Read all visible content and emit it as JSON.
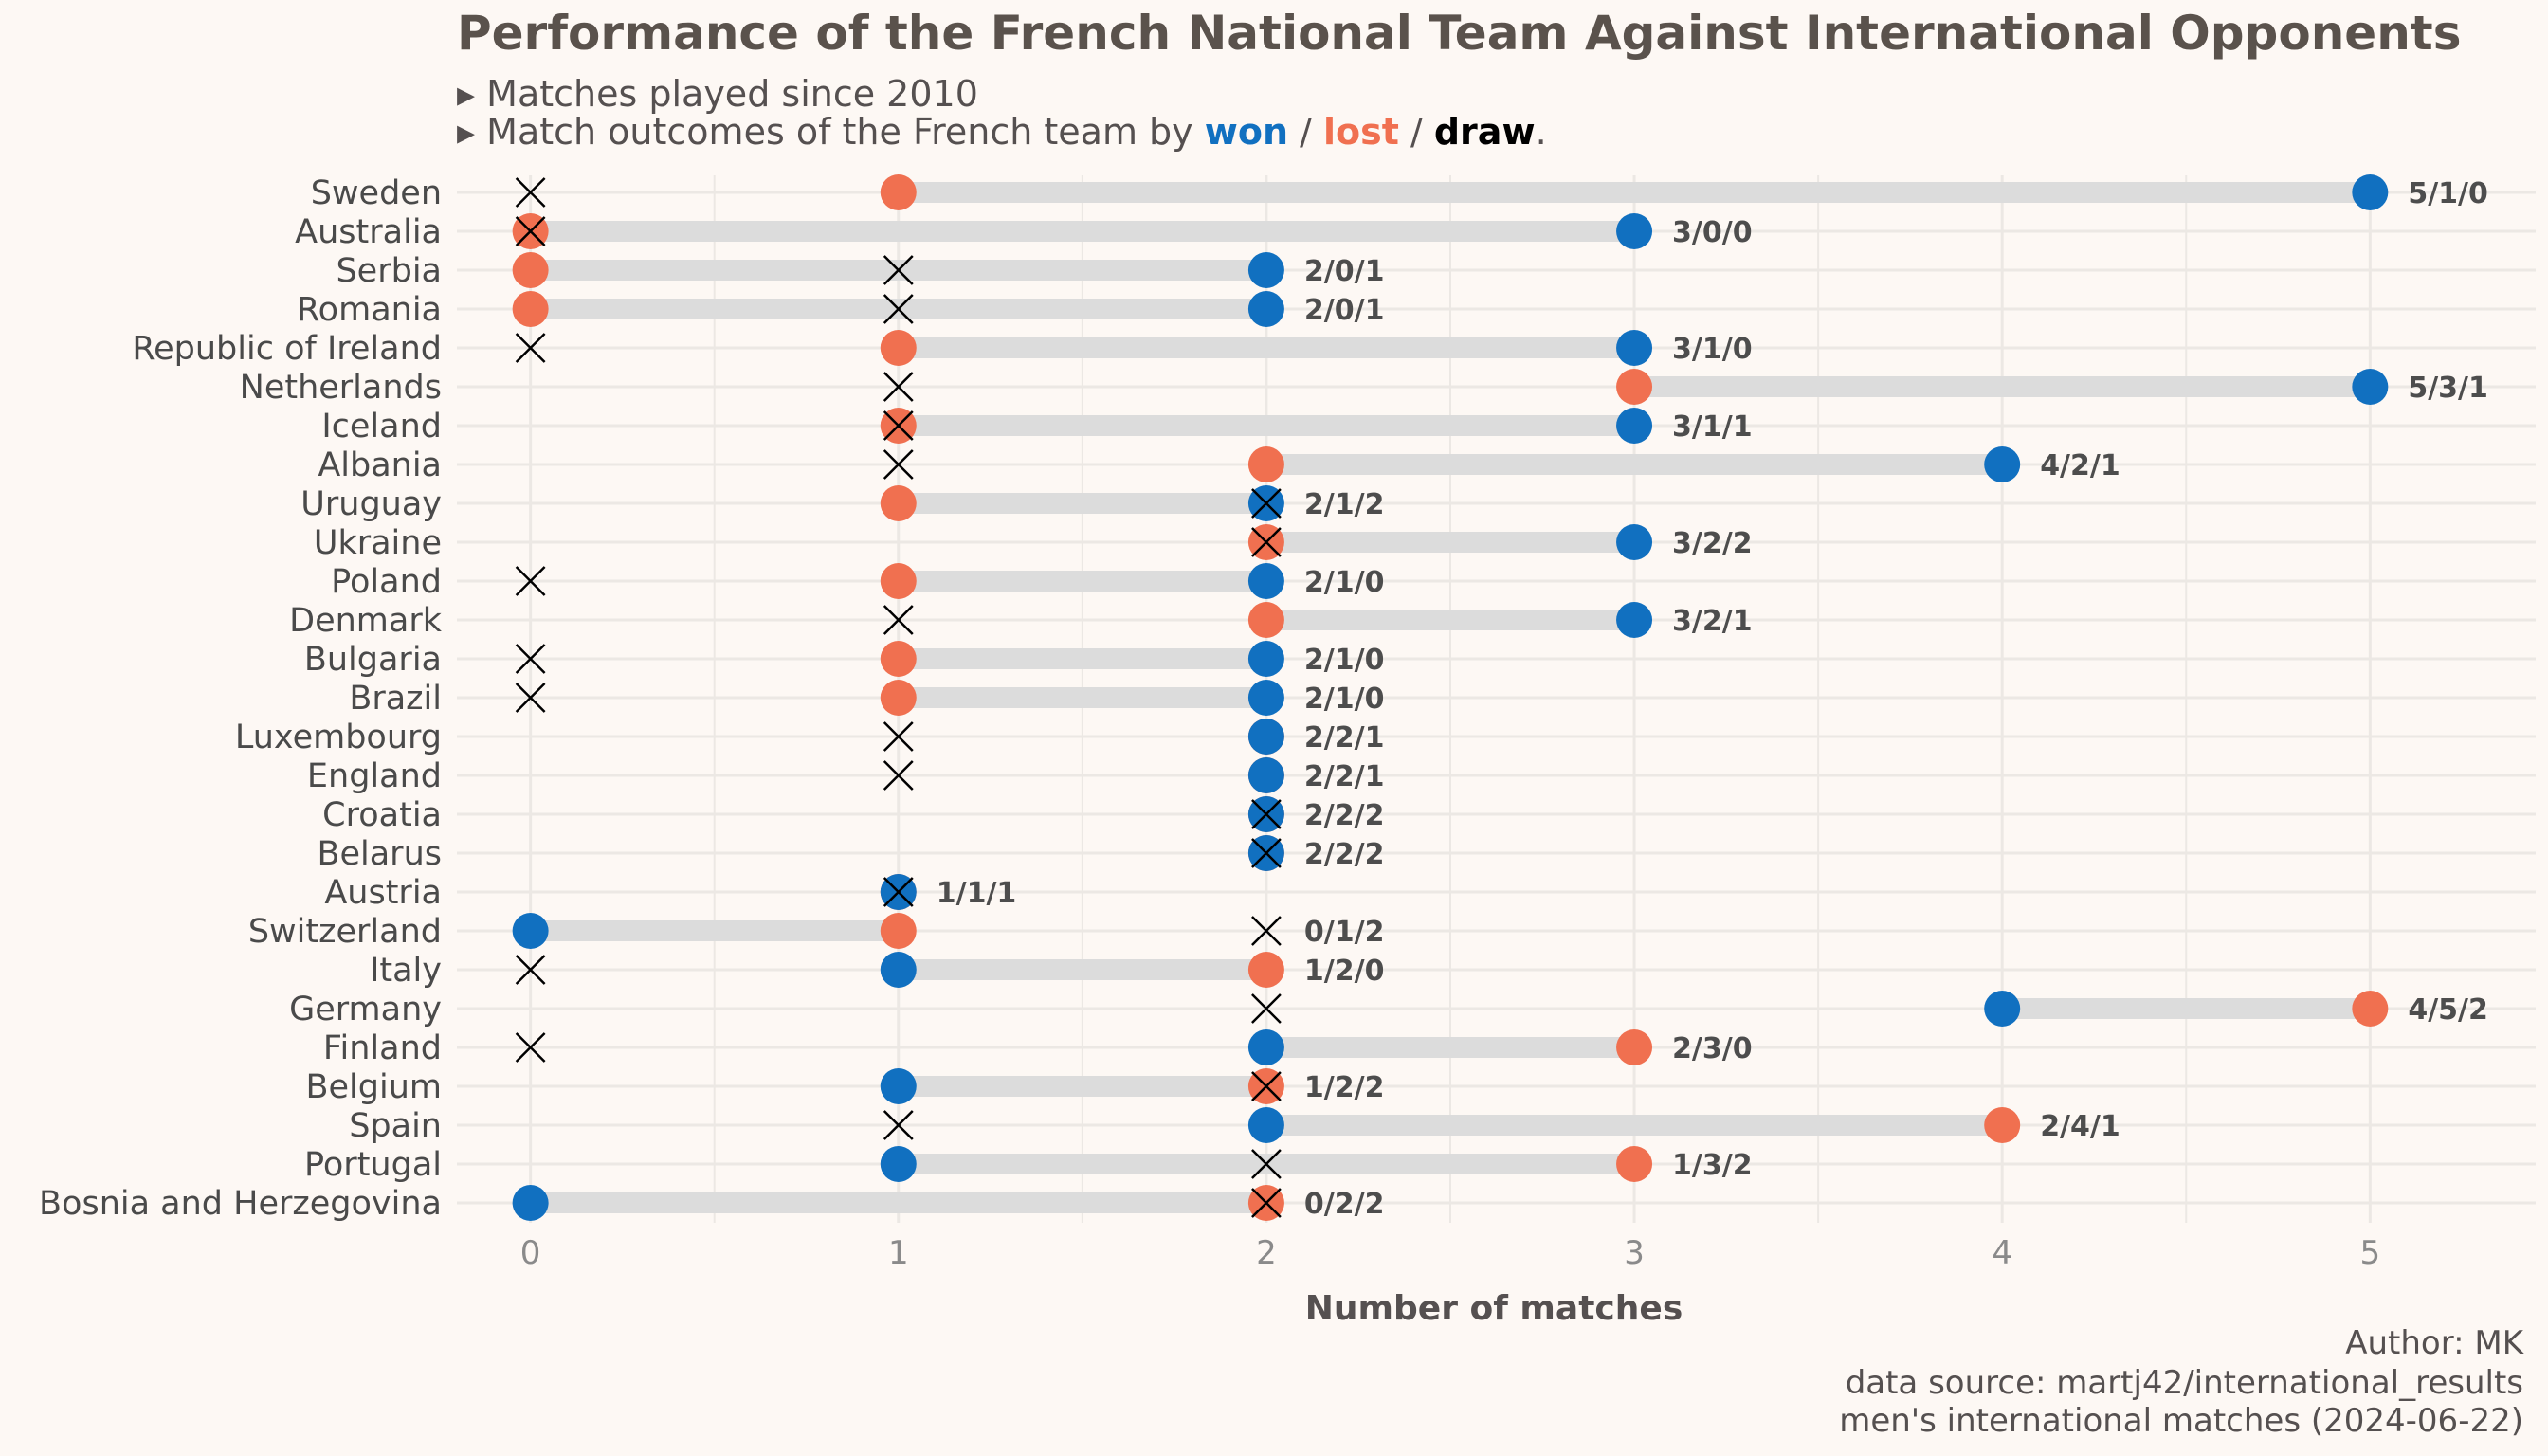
{
  "chart_data": {
    "type": "dumbbell",
    "title": "Performance of the French National Team Against International Opponents",
    "subtitle_line1": "▸ Matches played since 2010",
    "subtitle_line2_prefix": "▸ Match outcomes of the French team by ",
    "legend": [
      {
        "key": "won",
        "label": "won",
        "color": "#1170c0"
      },
      {
        "key": "lost",
        "label": "lost",
        "color": "#f07050"
      },
      {
        "key": "draw",
        "label": "draw",
        "color": "#000000"
      }
    ],
    "legend_separator": " / ",
    "subtitle_line2_suffix": ".",
    "xlabel": "Number of matches",
    "xlim": [
      -0.2,
      5.45
    ],
    "xticks": [
      0,
      1,
      2,
      3,
      4,
      5
    ],
    "grid": true,
    "caption": [
      "Author: MK",
      "data source: martj42/international_results",
      "men's international matches (2024-06-22)"
    ],
    "rows": [
      {
        "country": "Sweden",
        "won": 5,
        "lost": 1,
        "draw": 0,
        "label": "5/1/0"
      },
      {
        "country": "Australia",
        "won": 3,
        "lost": 0,
        "draw": 0,
        "label": "3/0/0"
      },
      {
        "country": "Serbia",
        "won": 2,
        "lost": 0,
        "draw": 1,
        "label": "2/0/1"
      },
      {
        "country": "Romania",
        "won": 2,
        "lost": 0,
        "draw": 1,
        "label": "2/0/1"
      },
      {
        "country": "Republic of Ireland",
        "won": 3,
        "lost": 1,
        "draw": 0,
        "label": "3/1/0"
      },
      {
        "country": "Netherlands",
        "won": 5,
        "lost": 3,
        "draw": 1,
        "label": "5/3/1"
      },
      {
        "country": "Iceland",
        "won": 3,
        "lost": 1,
        "draw": 1,
        "label": "3/1/1"
      },
      {
        "country": "Albania",
        "won": 4,
        "lost": 2,
        "draw": 1,
        "label": "4/2/1"
      },
      {
        "country": "Uruguay",
        "won": 2,
        "lost": 1,
        "draw": 2,
        "label": "2/1/2"
      },
      {
        "country": "Ukraine",
        "won": 3,
        "lost": 2,
        "draw": 2,
        "label": "3/2/2"
      },
      {
        "country": "Poland",
        "won": 2,
        "lost": 1,
        "draw": 0,
        "label": "2/1/0"
      },
      {
        "country": "Denmark",
        "won": 3,
        "lost": 2,
        "draw": 1,
        "label": "3/2/1"
      },
      {
        "country": "Bulgaria",
        "won": 2,
        "lost": 1,
        "draw": 0,
        "label": "2/1/0"
      },
      {
        "country": "Brazil",
        "won": 2,
        "lost": 1,
        "draw": 0,
        "label": "2/1/0"
      },
      {
        "country": "Luxembourg",
        "won": 2,
        "lost": 2,
        "draw": 1,
        "label": "2/2/1"
      },
      {
        "country": "England",
        "won": 2,
        "lost": 2,
        "draw": 1,
        "label": "2/2/1"
      },
      {
        "country": "Croatia",
        "won": 2,
        "lost": 2,
        "draw": 2,
        "label": "2/2/2"
      },
      {
        "country": "Belarus",
        "won": 2,
        "lost": 2,
        "draw": 2,
        "label": "2/2/2"
      },
      {
        "country": "Austria",
        "won": 1,
        "lost": 1,
        "draw": 1,
        "label": "1/1/1"
      },
      {
        "country": "Switzerland",
        "won": 0,
        "lost": 1,
        "draw": 2,
        "label": "0/1/2"
      },
      {
        "country": "Italy",
        "won": 1,
        "lost": 2,
        "draw": 0,
        "label": "1/2/0"
      },
      {
        "country": "Germany",
        "won": 4,
        "lost": 5,
        "draw": 2,
        "label": "4/5/2"
      },
      {
        "country": "Finland",
        "won": 2,
        "lost": 3,
        "draw": 0,
        "label": "2/3/0"
      },
      {
        "country": "Belgium",
        "won": 1,
        "lost": 2,
        "draw": 2,
        "label": "1/2/2"
      },
      {
        "country": "Spain",
        "won": 2,
        "lost": 4,
        "draw": 1,
        "label": "2/4/1"
      },
      {
        "country": "Portugal",
        "won": 1,
        "lost": 3,
        "draw": 2,
        "label": "1/3/2"
      },
      {
        "country": "Bosnia and Herzegovina",
        "won": 0,
        "lost": 2,
        "draw": 2,
        "label": "0/2/2"
      }
    ]
  }
}
